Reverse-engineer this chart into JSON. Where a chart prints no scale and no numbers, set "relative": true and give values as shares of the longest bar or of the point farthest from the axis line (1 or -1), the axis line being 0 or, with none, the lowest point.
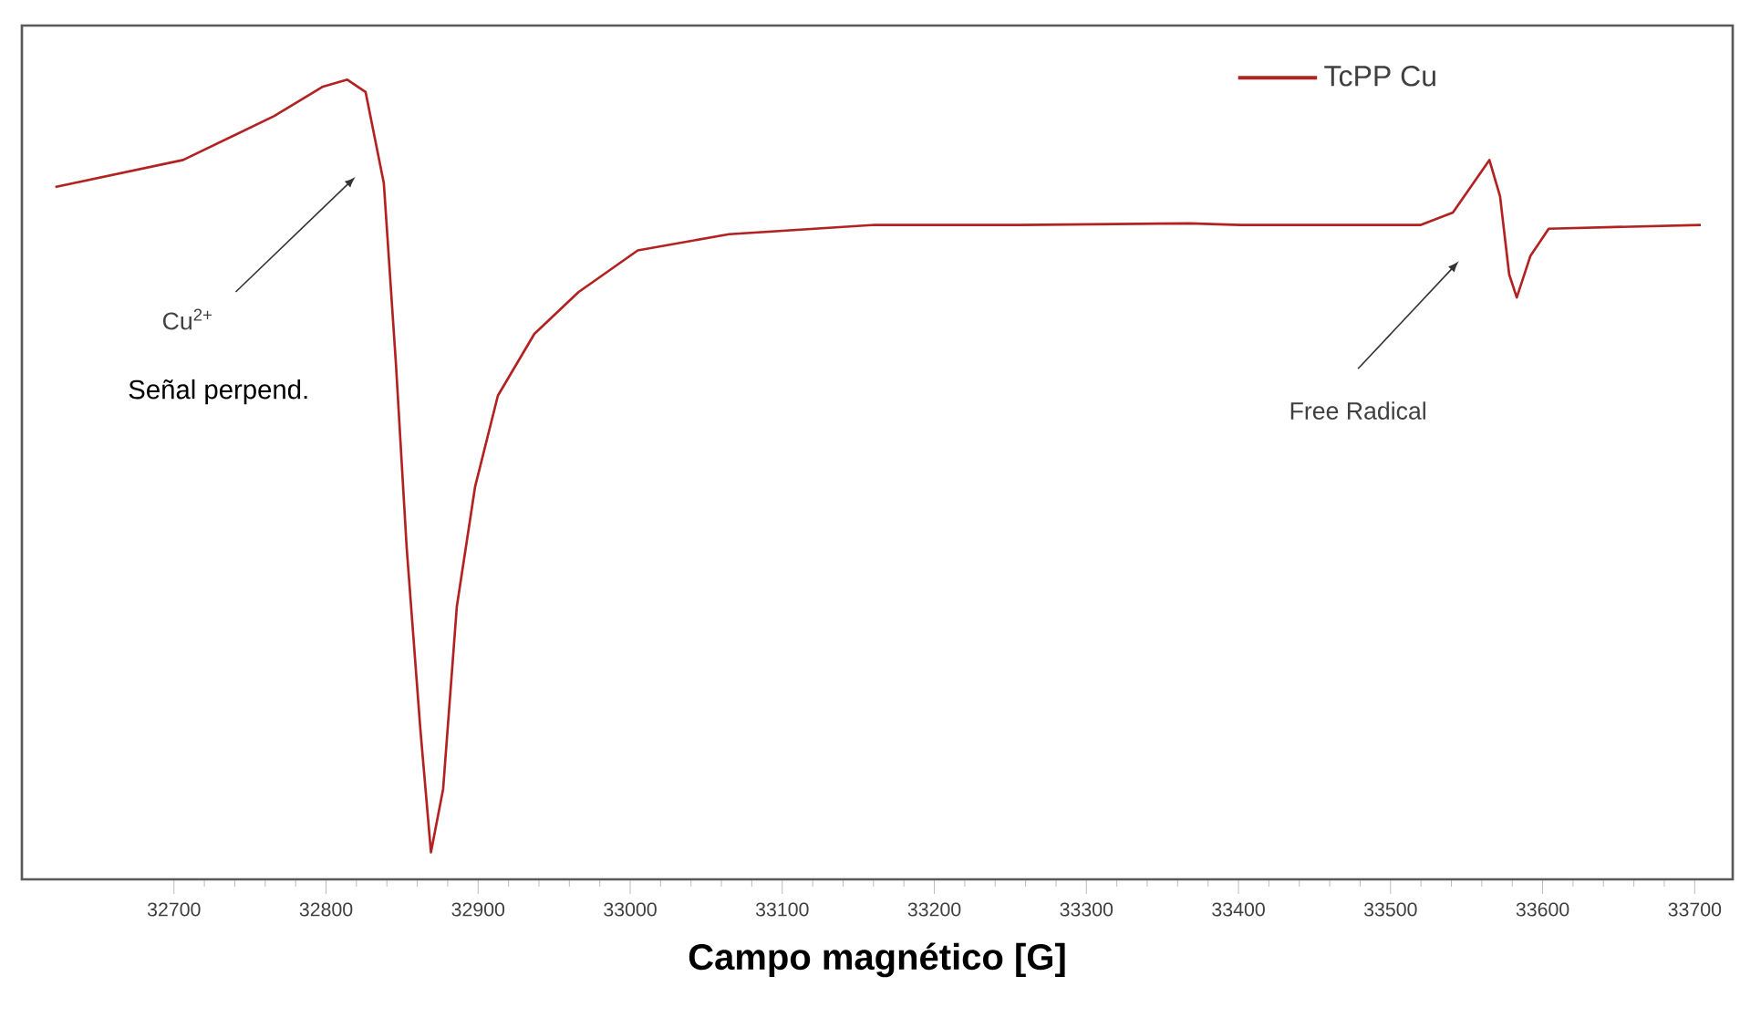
{
  "chart_data": {
    "type": "line",
    "relative": true,
    "xlabel": "Campo magnético [G]",
    "xlim": [
      32600,
      33725
    ],
    "xticks": [
      32700,
      32800,
      32900,
      33000,
      33100,
      33200,
      33300,
      33400,
      33500,
      33600,
      33700
    ],
    "legend": "top right",
    "series": [
      {
        "name": "TcPP Cu",
        "color": "#b22222",
        "x": [
          32622,
          32706,
          32766,
          32798,
          32814,
          32826,
          32838,
          32846,
          32853,
          32862,
          32869,
          32877,
          32886,
          32898,
          32913,
          32937,
          32966,
          33005,
          33065,
          33161,
          33257,
          33368,
          33401,
          33520,
          33541,
          33565,
          33572,
          33578,
          33583,
          33592,
          33604,
          33704
        ],
        "values": [
          0.861,
          0.896,
          0.953,
          0.991,
          1,
          0.984,
          0.866,
          0.631,
          0.395,
          0.16,
          0,
          0.082,
          0.318,
          0.473,
          0.591,
          0.671,
          0.725,
          0.779,
          0.8,
          0.812,
          0.812,
          0.814,
          0.812,
          0.812,
          0.828,
          0.896,
          0.849,
          0.748,
          0.718,
          0.772,
          0.807,
          0.812
        ]
      }
    ],
    "annotations": [
      "Cu$^{2+}$",
      "Señal perpend.",
      "Free Radical"
    ]
  }
}
